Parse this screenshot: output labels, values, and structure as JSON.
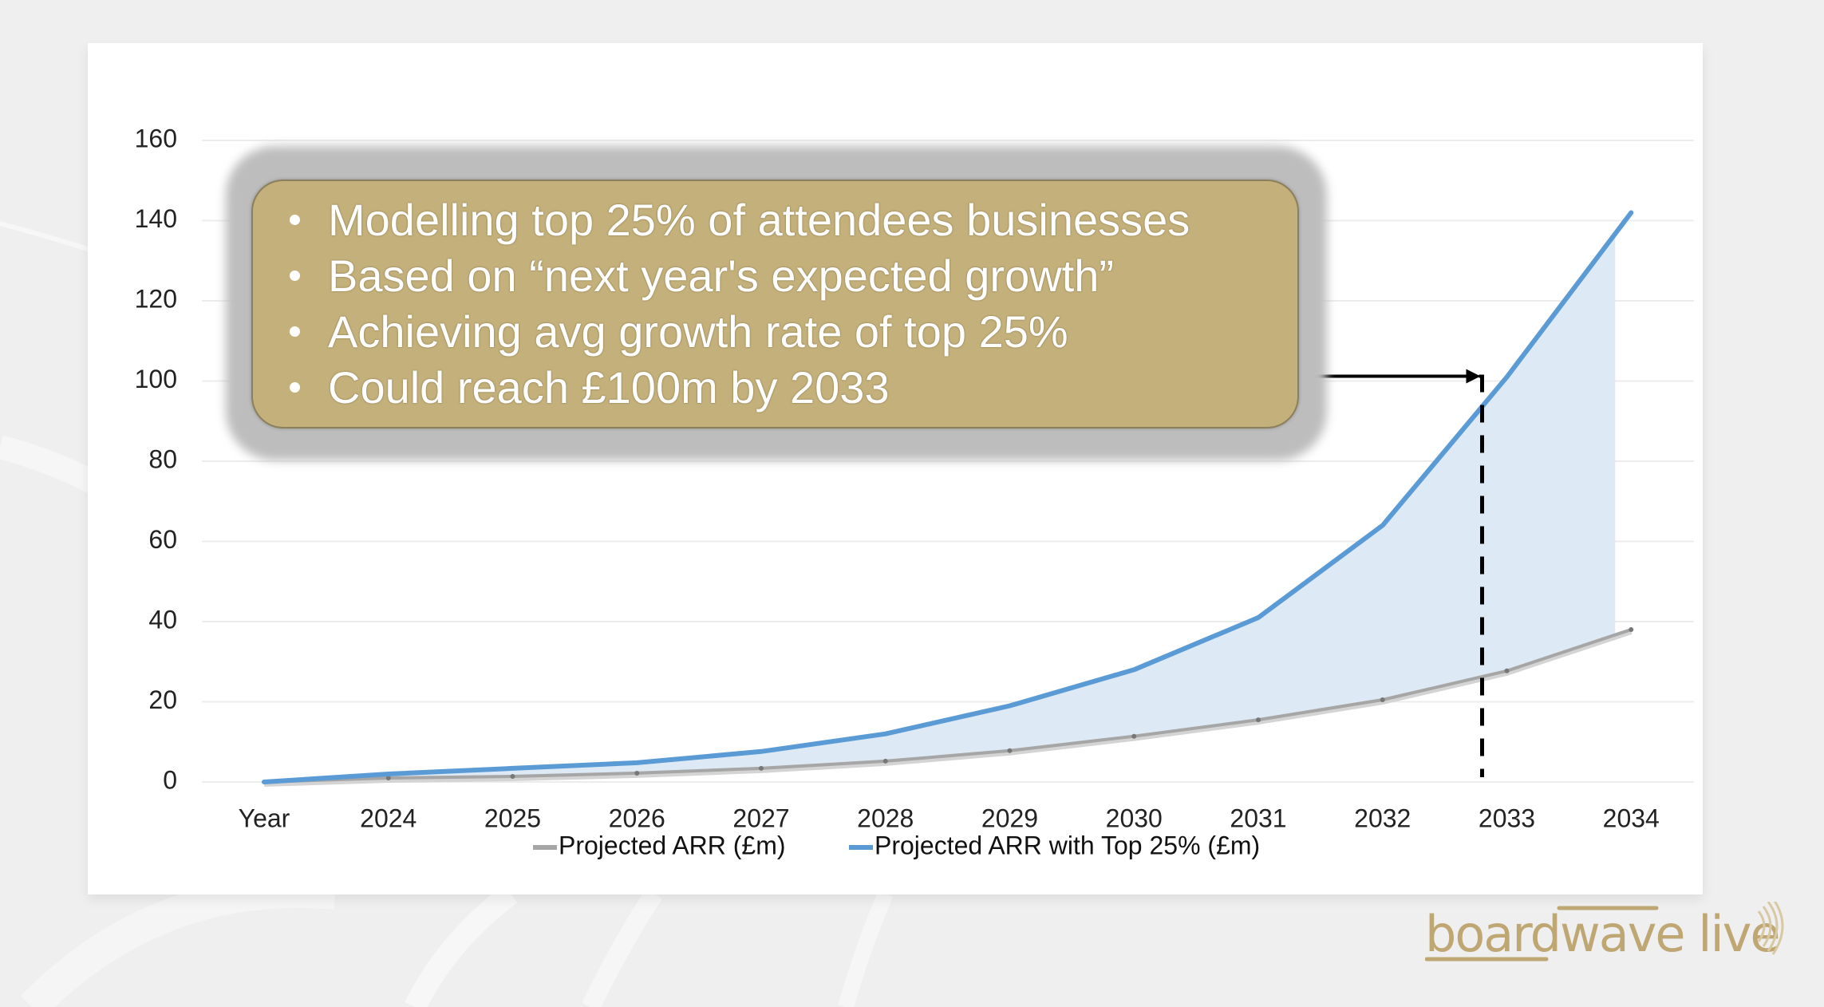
{
  "slide": {
    "callout": {
      "bullets": [
        "Modelling top 25% of attendees businesses",
        "Based on “next year's expected growth”",
        "Achieving avg growth rate of top 25%",
        "Could reach £100m by 2033"
      ]
    },
    "annotation": {
      "target_year": "2033",
      "target_value": 100
    },
    "logo": {
      "text": "boardwave live"
    },
    "colors": {
      "background": "#efefef",
      "callout_fill": "#c4b07a",
      "callout_glow": "#bdbdbd",
      "logo": "#bfa774",
      "series_grey": "#a6a6a6",
      "series_blue": "#5b9bd5",
      "area_fill": "#dde9f5"
    }
  },
  "chart_data": {
    "type": "line",
    "title": "",
    "xlabel": "",
    "ylabel": "",
    "categories": [
      "Year",
      "2024",
      "2025",
      "2026",
      "2027",
      "2028",
      "2029",
      "2030",
      "2031",
      "2032",
      "2033",
      "2034"
    ],
    "ylim": [
      0,
      160
    ],
    "yticks": [
      0,
      20,
      40,
      60,
      80,
      100,
      120,
      140,
      160
    ],
    "grid": true,
    "legend_position": "bottom",
    "series": [
      {
        "name": "Projected ARR (£m)",
        "color": "#a6a6a6",
        "values": [
          0,
          1,
          1.4,
          2.2,
          3.4,
          5.2,
          7.8,
          11.4,
          15.5,
          20.5,
          27.7,
          38
        ]
      },
      {
        "name": "Projected ARR with Top 25% (£m)",
        "color": "#5b9bd5",
        "values": [
          0,
          2,
          3.4,
          4.8,
          7.6,
          12,
          19,
          28,
          41,
          64,
          101,
          142
        ]
      }
    ],
    "shaded_area": "between series, light blue",
    "annotations": [
      {
        "type": "arrow",
        "text": "from callout to £100m at 2033"
      },
      {
        "type": "dashed-vertical-line",
        "x": "2033"
      }
    ]
  }
}
